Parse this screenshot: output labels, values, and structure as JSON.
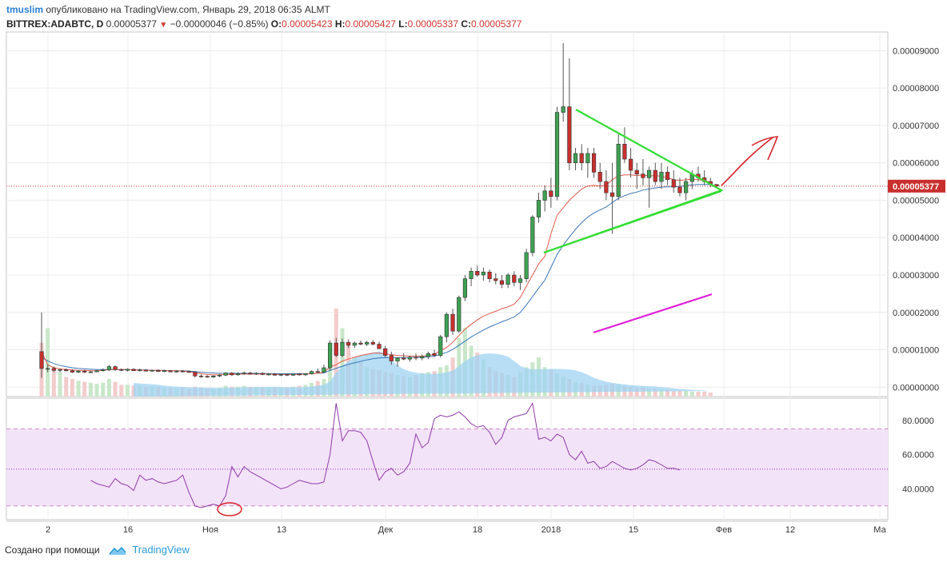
{
  "header": {
    "author": "tmuslim",
    "published": "опубликовано на TradingView.com, Январь 29, 2018 06:35 ALMT",
    "symbol": "BITTREX:ADABTC, D",
    "last": "0.00005377",
    "change": "−0.00000046 (−0.85%)",
    "o_label": "O:",
    "o_value": "0.00005423",
    "h_label": "H:",
    "h_value": "0.00005427",
    "l_label": "L:",
    "l_value": "0.00005337",
    "c_label": "C:",
    "c_value": "0.00005377"
  },
  "footer": {
    "made_with": "Создано при помощи",
    "brand": "TradingView"
  },
  "colors": {
    "up": "#3ea152",
    "down": "#c8302e",
    "ema_fast": "#e25a4a",
    "ema_slow": "#3a76b7",
    "rsi": "#8e3aa8",
    "triangle": "#33dd33",
    "arrow": "#d8232a",
    "trend": "#e020d8",
    "price_line": "#c8302e",
    "rsi_band": "#f3e3f8"
  },
  "chart_data": [
    {
      "type": "candlestick",
      "x_ticks": [
        "2",
        "16",
        "Ноя",
        "13",
        "Дек",
        "18",
        "2018",
        "15",
        "Фев",
        "12",
        "Ма"
      ],
      "y_ticks": [
        "0.00009000",
        "0.00008000",
        "0.00007000",
        "0.00006000",
        "0.00005000",
        "0.00004000",
        "0.00003000",
        "0.00002000",
        "0.00001000",
        "0.00000000"
      ],
      "ylim": [
        -2.5e-06,
        9.5e-05
      ],
      "last_price": 5.377e-05,
      "last_price_label": "0.00005377",
      "candles": [
        [
          9.5e-06,
          2e-05,
          2.5e-06,
          5e-06
        ],
        [
          5e-06,
          6e-06,
          4e-06,
          5e-06
        ],
        [
          5e-06,
          5.5e-06,
          4e-06,
          4.5e-06
        ],
        [
          4.5e-06,
          5e-06,
          4e-06,
          4.7e-06
        ],
        [
          4.7e-06,
          5e-06,
          4.2e-06,
          4.4e-06
        ],
        [
          4.4e-06,
          4.8e-06,
          3.8e-06,
          4e-06
        ],
        [
          4e-06,
          4.6e-06,
          3.8e-06,
          4.3e-06
        ],
        [
          4.3e-06,
          4.6e-06,
          3.8e-06,
          4e-06
        ],
        [
          4e-06,
          4.4e-06,
          3.8e-06,
          4.1e-06
        ],
        [
          4.1e-06,
          4.6e-06,
          4e-06,
          4.4e-06
        ],
        [
          4.4e-06,
          5e-06,
          4.2e-06,
          4.6e-06
        ],
        [
          4.6e-06,
          6e-06,
          4.3e-06,
          5.5e-06
        ],
        [
          5.5e-06,
          5.8e-06,
          4.4e-06,
          4.7e-06
        ],
        [
          4.7e-06,
          5e-06,
          4.3e-06,
          4.5e-06
        ],
        [
          4.5e-06,
          5e-06,
          4.2e-06,
          4.8e-06
        ],
        [
          4.8e-06,
          5e-06,
          4.3e-06,
          4.4e-06
        ],
        [
          4.4e-06,
          5e-06,
          4.2e-06,
          4.6e-06
        ],
        [
          4.6e-06,
          4.8e-06,
          4.2e-06,
          4.3e-06
        ],
        [
          4.3e-06,
          4.7e-06,
          4.1e-06,
          4.5e-06
        ],
        [
          4.5e-06,
          4.8e-06,
          4.1e-06,
          4.2e-06
        ],
        [
          4.2e-06,
          4.6e-06,
          4e-06,
          4.4e-06
        ],
        [
          4.4e-06,
          4.6e-06,
          4e-06,
          4.1e-06
        ],
        [
          4.1e-06,
          4.6e-06,
          3.9e-06,
          4.3e-06
        ],
        [
          4.3e-06,
          4.6e-06,
          4e-06,
          4.2e-06
        ],
        [
          4.2e-06,
          4.5e-06,
          3.8e-06,
          4e-06
        ],
        [
          4e-06,
          4.3e-06,
          2.6e-06,
          3e-06
        ],
        [
          3e-06,
          3.4e-06,
          2.5e-06,
          2.9e-06
        ],
        [
          2.9e-06,
          3.2e-06,
          2.5e-06,
          2.7e-06
        ],
        [
          2.7e-06,
          3.2e-06,
          2.5e-06,
          3e-06
        ],
        [
          3e-06,
          3.5e-06,
          2.7e-06,
          3.2e-06
        ],
        [
          3.2e-06,
          4e-06,
          3e-06,
          3.8e-06
        ],
        [
          3.8e-06,
          4e-06,
          3e-06,
          3.3e-06
        ],
        [
          3.3e-06,
          4e-06,
          3.1e-06,
          3.6e-06
        ],
        [
          3.6e-06,
          4.2e-06,
          3.3e-06,
          3.8e-06
        ],
        [
          3.8e-06,
          4.1e-06,
          3.3e-06,
          3.5e-06
        ],
        [
          3.5e-06,
          4e-06,
          3.3e-06,
          3.7e-06
        ],
        [
          3.7e-06,
          4e-06,
          3.2e-06,
          3.4e-06
        ],
        [
          3.4e-06,
          3.8e-06,
          3.1e-06,
          3.5e-06
        ],
        [
          3.5e-06,
          3.8e-06,
          3.1e-06,
          3.2e-06
        ],
        [
          3.2e-06,
          3.6e-06,
          3e-06,
          3.4e-06
        ],
        [
          3.4e-06,
          3.7e-06,
          3e-06,
          3.2e-06
        ],
        [
          3.2e-06,
          3.6e-06,
          3e-06,
          3.5e-06
        ],
        [
          3.5e-06,
          3.8e-06,
          3.1e-06,
          3.3e-06
        ],
        [
          3.3e-06,
          3.7e-06,
          3e-06,
          3.6e-06
        ],
        [
          3.6e-06,
          4.5e-06,
          3.4e-06,
          4.2e-06
        ],
        [
          4.2e-06,
          5e-06,
          3.6e-06,
          4e-06
        ],
        [
          4e-06,
          6e-06,
          3.8e-06,
          5.2e-06
        ],
        [
          5.2e-06,
          1.25e-05,
          4.5e-06,
          1.18e-05
        ],
        [
          1.18e-05,
          1.32e-05,
          8e-06,
          8.5e-06
        ],
        [
          8.5e-06,
          1.3e-05,
          8e-06,
          1.2e-05
        ],
        [
          1.2e-05,
          1.28e-05,
          1.05e-05,
          1.12e-05
        ],
        [
          1.12e-05,
          1.22e-05,
          1.05e-05,
          1.18e-05
        ],
        [
          1.18e-05,
          1.25e-05,
          1.12e-05,
          1.15e-05
        ],
        [
          1.15e-05,
          1.24e-05,
          1.1e-05,
          1.2e-05
        ],
        [
          1.2e-05,
          1.26e-05,
          1.12e-05,
          1.15e-05
        ],
        [
          1.15e-05,
          1.22e-05,
          1.08e-05,
          1.03e-05
        ],
        [
          1.03e-05,
          1.1e-05,
          8e-06,
          8.5e-06
        ],
        [
          8.5e-06,
          9.5e-06,
          6e-06,
          7e-06
        ],
        [
          7e-06,
          8e-06,
          5.5e-06,
          7.8e-06
        ],
        [
          7.8e-06,
          9e-06,
          7.2e-06,
          7.5e-06
        ],
        [
          7.5e-06,
          8.5e-06,
          6.8e-06,
          8e-06
        ],
        [
          8e-06,
          9e-06,
          7.2e-06,
          7.8e-06
        ],
        [
          7.8e-06,
          8.8e-06,
          7.2e-06,
          8.2e-06
        ],
        [
          8.2e-06,
          9.5e-06,
          7.5e-06,
          9e-06
        ],
        [
          9e-06,
          1e-05,
          8e-06,
          8.5e-06
        ],
        [
          8.5e-06,
          1.4e-05,
          8e-06,
          1.35e-05
        ],
        [
          1.35e-05,
          2e-05,
          1.2e-05,
          1.95e-05
        ],
        [
          1.95e-05,
          2.1e-05,
          1.4e-05,
          1.5e-05
        ],
        [
          1.5e-05,
          2.45e-05,
          1.45e-05,
          2.4e-05
        ],
        [
          2.4e-05,
          3e-05,
          2.3e-05,
          2.9e-05
        ],
        [
          2.9e-05,
          3.2e-05,
          2.7e-05,
          3.1e-05
        ],
        [
          3.1e-05,
          3.25e-05,
          2.95e-05,
          3e-05
        ],
        [
          3e-05,
          3.2e-05,
          2.85e-05,
          3.08e-05
        ],
        [
          3.08e-05,
          3.15e-05,
          2.8e-05,
          2.9e-05
        ],
        [
          2.9e-05,
          3.05e-05,
          2.75e-05,
          2.85e-05
        ],
        [
          2.85e-05,
          3e-05,
          2.65e-05,
          2.75e-05
        ],
        [
          2.75e-05,
          3.05e-05,
          2.65e-05,
          3e-05
        ],
        [
          3e-05,
          3.1e-05,
          2.7e-05,
          2.8e-05
        ],
        [
          2.8e-05,
          3e-05,
          2.6e-05,
          2.9e-05
        ],
        [
          2.9e-05,
          3.7e-05,
          2.8e-05,
          3.6e-05
        ],
        [
          3.6e-05,
          4.6e-05,
          3.5e-05,
          4.55e-05
        ],
        [
          4.55e-05,
          5.2e-05,
          4.4e-05,
          5e-05
        ],
        [
          5e-05,
          5.4e-05,
          4.7e-05,
          5.25e-05
        ],
        [
          5.25e-05,
          5.6e-05,
          4.8e-05,
          5.1e-05
        ],
        [
          5.1e-05,
          7.5e-05,
          5e-05,
          7.35e-05
        ],
        [
          7.35e-05,
          9.2e-05,
          7.1e-05,
          7.5e-05
        ],
        [
          7.5e-05,
          8.8e-05,
          5.8e-05,
          6e-05
        ],
        [
          6e-05,
          6.4e-05,
          5.8e-05,
          6.25e-05
        ],
        [
          6.25e-05,
          6.5e-05,
          5.8e-05,
          6e-05
        ],
        [
          6e-05,
          6.4e-05,
          5.6e-05,
          6.25e-05
        ],
        [
          6.25e-05,
          6.4e-05,
          5.6e-05,
          5.75e-05
        ],
        [
          5.75e-05,
          6e-05,
          5.3e-05,
          5.5e-05
        ],
        [
          5.5e-05,
          5.8e-05,
          5e-05,
          5.2e-05
        ],
        [
          5.2e-05,
          6e-05,
          4.1e-05,
          5.1e-05
        ],
        [
          5.1e-05,
          6.8e-05,
          5e-05,
          6.5e-05
        ],
        [
          6.5e-05,
          6.95e-05,
          6e-05,
          6.1e-05
        ],
        [
          6.1e-05,
          6.4e-05,
          5.6e-05,
          5.8e-05
        ],
        [
          5.8e-05,
          6e-05,
          5.3e-05,
          5.7e-05
        ],
        [
          5.7e-05,
          6.1e-05,
          5.4e-05,
          5.6e-05
        ],
        [
          5.6e-05,
          5.9e-05,
          4.8e-05,
          5.8e-05
        ],
        [
          5.8e-05,
          6e-05,
          5.4e-05,
          5.5e-05
        ],
        [
          5.5e-05,
          6e-05,
          5.3e-05,
          5.75e-05
        ],
        [
          5.75e-05,
          5.9e-05,
          5.4e-05,
          5.55e-05
        ],
        [
          5.55e-05,
          5.8e-05,
          5.2e-05,
          5.35e-05
        ],
        [
          5.35e-05,
          5.6e-05,
          5.1e-05,
          5.2e-05
        ],
        [
          5.2e-05,
          5.6e-05,
          5e-05,
          5.5e-05
        ],
        [
          5.5e-05,
          5.8e-05,
          5.3e-05,
          5.7e-05
        ],
        [
          5.7e-05,
          5.9e-05,
          5.5e-05,
          5.6e-05
        ],
        [
          5.6e-05,
          5.8e-05,
          5.4e-05,
          5.5e-05
        ],
        [
          5.5e-05,
          5.6e-05,
          5.35e-05,
          5.42e-05
        ],
        [
          5.423e-05,
          5.427e-05,
          5.337e-05,
          5.377e-05
        ]
      ],
      "ema_fast": [
        9.5e-06,
        6e-06,
        5.2e-06,
        4.9e-06,
        4.7e-06,
        4.6e-06,
        4.5e-06,
        4.5e-06,
        4.4e-06,
        4.4e-06,
        4.5e-06,
        4.7e-06,
        4.7e-06,
        4.7e-06,
        4.7e-06,
        4.6e-06,
        4.6e-06,
        4.5e-06,
        4.5e-06,
        4.5e-06,
        4.4e-06,
        4.4e-06,
        4.4e-06,
        4.3e-06,
        4.2e-06,
        3.9e-06,
        3.6e-06,
        3.4e-06,
        3.3e-06,
        3.3e-06,
        3.4e-06,
        3.4e-06,
        3.5e-06,
        3.5e-06,
        3.5e-06,
        3.5e-06,
        3.5e-06,
        3.5e-06,
        3.4e-06,
        3.4e-06,
        3.4e-06,
        3.4e-06,
        3.4e-06,
        3.5e-06,
        3.6e-06,
        3.7e-06,
        4e-06,
        5.4e-06,
        6e-06,
        7e-06,
        7.5e-06,
        8e-06,
        8.5e-06,
        8.8e-06,
        9.1e-06,
        9.1e-06,
        8.9e-06,
        8.7e-06,
        8.5e-06,
        8.4e-06,
        8.3e-06,
        8.3e-06,
        8.3e-06,
        8.4e-06,
        8.8e-06,
        9.8e-06,
        1.06e-05,
        1.2e-05,
        1.38e-05,
        1.55e-05,
        1.68e-05,
        1.8e-05,
        1.9e-05,
        1.97e-05,
        2.03e-05,
        2.1e-05,
        2.15e-05,
        2.22e-05,
        2.4e-05,
        2.7e-05,
        3e-05,
        3.3e-05,
        3.5e-05,
        4.1e-05,
        4.6e-05,
        4.8e-05,
        5e-05,
        5.15e-05,
        5.3e-05,
        5.38e-05,
        5.4e-05,
        5.38e-05,
        5.4e-05,
        5.55e-05,
        5.65e-05,
        5.68e-05,
        5.68e-05,
        5.66e-05,
        5.68e-05,
        5.65e-05,
        5.66e-05,
        5.64e-05,
        5.6e-05,
        5.55e-05,
        5.53e-05,
        5.55e-05,
        5.56e-05,
        5.55e-05,
        5.52e-05,
        5.48e-05
      ],
      "ema_slow": [
        8e-06,
        7e-06,
        6.3e-06,
        5.8e-06,
        5.5e-06,
        5.2e-06,
        5e-06,
        4.9e-06,
        4.8e-06,
        4.7e-06,
        4.7e-06,
        4.7e-06,
        4.7e-06,
        4.7e-06,
        4.7e-06,
        4.6e-06,
        4.6e-06,
        4.6e-06,
        4.5e-06,
        4.5e-06,
        4.5e-06,
        4.4e-06,
        4.4e-06,
        4.4e-06,
        4.3e-06,
        4.2e-06,
        4e-06,
        3.9e-06,
        3.8e-06,
        3.7e-06,
        3.7e-06,
        3.7e-06,
        3.7e-06,
        3.7e-06,
        3.7e-06,
        3.7e-06,
        3.7e-06,
        3.6e-06,
        3.6e-06,
        3.6e-06,
        3.6e-06,
        3.6e-06,
        3.6e-06,
        3.6e-06,
        3.6e-06,
        3.7e-06,
        3.8e-06,
        4.5e-06,
        5e-06,
        5.6e-06,
        6.1e-06,
        6.5e-06,
        6.9e-06,
        7.3e-06,
        7.6e-06,
        7.8e-06,
        7.9e-06,
        7.9e-06,
        7.9e-06,
        7.9e-06,
        7.9e-06,
        8e-06,
        8e-06,
        8.1e-06,
        8.3e-06,
        8.8e-06,
        9.3e-06,
        1.01e-05,
        1.12e-05,
        1.23e-05,
        1.34e-05,
        1.44e-05,
        1.53e-05,
        1.61e-05,
        1.68e-05,
        1.75e-05,
        1.81e-05,
        1.88e-05,
        2e-05,
        2.2e-05,
        2.42e-05,
        2.65e-05,
        2.86e-05,
        3.2e-05,
        3.55e-05,
        3.8e-05,
        4.02e-05,
        4.22e-05,
        4.4e-05,
        4.55e-05,
        4.66e-05,
        4.74e-05,
        4.82e-05,
        4.94e-05,
        5.05e-05,
        5.12e-05,
        5.18e-05,
        5.22e-05,
        5.27e-05,
        5.3e-05,
        5.33e-05,
        5.35e-05,
        5.36e-05,
        5.36e-05,
        5.37e-05,
        5.39e-05,
        5.41e-05,
        5.42e-05,
        5.42e-05,
        5.42e-05
      ],
      "volume": [
        55,
        70,
        30,
        25,
        20,
        18,
        16,
        15,
        14,
        13,
        14,
        18,
        15,
        12,
        12,
        11,
        11,
        10,
        10,
        10,
        9,
        9,
        9,
        9,
        8,
        10,
        9,
        8,
        8,
        9,
        11,
        10,
        10,
        11,
        10,
        10,
        9,
        9,
        9,
        9,
        9,
        10,
        11,
        12,
        14,
        16,
        18,
        40,
        90,
        70,
        55,
        40,
        35,
        30,
        28,
        27,
        25,
        24,
        22,
        21,
        20,
        22,
        24,
        25,
        26,
        30,
        32,
        40,
        60,
        70,
        52,
        45,
        38,
        30,
        26,
        24,
        22,
        20,
        25,
        30,
        35,
        40,
        30,
        28,
        24,
        20,
        18,
        15,
        14,
        12,
        11,
        11,
        12,
        13,
        12,
        11,
        10,
        9,
        9,
        8,
        8,
        7,
        7,
        6,
        6,
        6,
        5,
        5,
        5,
        4
      ]
    },
    {
      "type": "line",
      "y_ticks": [
        "80.0000",
        "60.0000",
        "40.0000"
      ],
      "ylim": [
        22,
        93
      ],
      "band": [
        30,
        75
      ],
      "midline": 51.5,
      "start_index": 8,
      "rsi": [
        45,
        43,
        42,
        41,
        46,
        43,
        42,
        39,
        48,
        45,
        46,
        44,
        43,
        44,
        45,
        48,
        38,
        30,
        29,
        30,
        31,
        30,
        36,
        53,
        47,
        53,
        50,
        48,
        46,
        44,
        42,
        40,
        41,
        43,
        45,
        44,
        43,
        43,
        44,
        60,
        90,
        68,
        74,
        74,
        73,
        68,
        56,
        45,
        50,
        52,
        48,
        50,
        55,
        72,
        64,
        67,
        81,
        83,
        82,
        83,
        85,
        82,
        78,
        76,
        77,
        73,
        66,
        70,
        80,
        82,
        83,
        84,
        90,
        69,
        70,
        68,
        72,
        70,
        60,
        57,
        62,
        55,
        56,
        52,
        53,
        56,
        54,
        52,
        51,
        52,
        54,
        57,
        56,
        54,
        52,
        52,
        51
      ]
    }
  ]
}
